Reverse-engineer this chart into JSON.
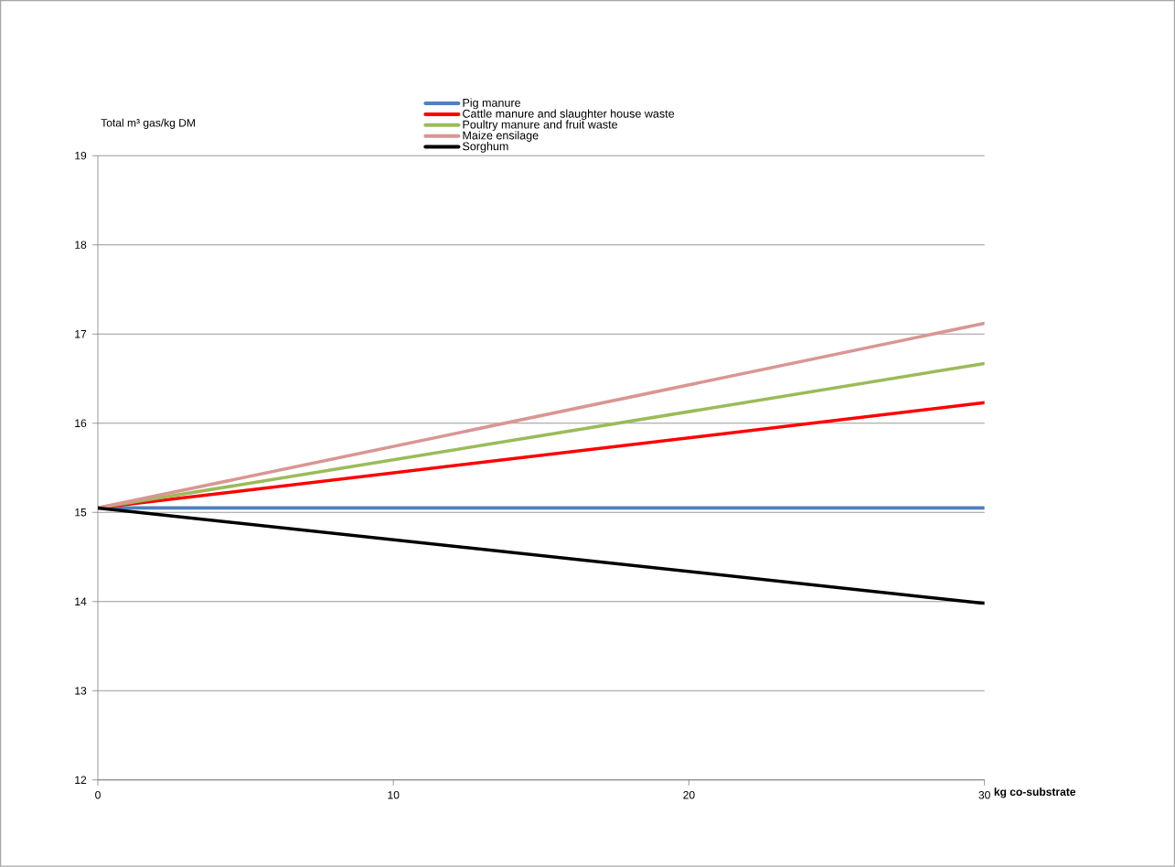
{
  "chart_data": {
    "type": "line",
    "xlabel": "kg co-substrate",
    "ylabel": "Total m³ gas/kg DM",
    "x": [
      0,
      30
    ],
    "series": [
      {
        "name": "Pig manure",
        "color": "#4f81bd",
        "values": [
          15.05,
          15.05
        ]
      },
      {
        "name": "Cattle manure and slaughter house waste",
        "color": "#ff0000",
        "values": [
          15.05,
          16.23
        ]
      },
      {
        "name": "Poultry manure and fruit waste",
        "color": "#9bbb59",
        "values": [
          15.05,
          16.67
        ]
      },
      {
        "name": "Maize ensilage",
        "color": "#d99694",
        "values": [
          15.05,
          17.12
        ]
      },
      {
        "name": "Sorghum",
        "color": "#000000",
        "values": [
          15.05,
          13.98
        ]
      }
    ],
    "xlim": [
      0,
      30
    ],
    "xticks": [
      0,
      10,
      20,
      30
    ],
    "ylim": [
      12,
      19
    ],
    "yticks": [
      12,
      13,
      14,
      15,
      16,
      17,
      18,
      19
    ],
    "grid": "y",
    "legend": "top",
    "marker": "none",
    "line_style": "solid"
  }
}
